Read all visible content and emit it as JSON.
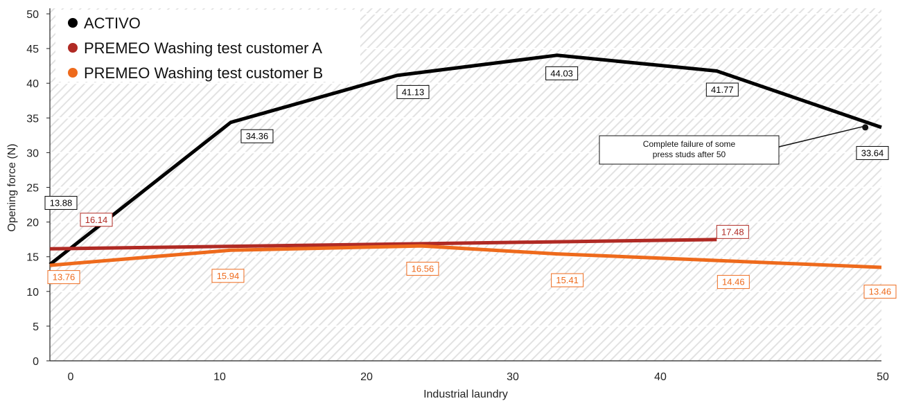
{
  "chart_data": {
    "type": "line",
    "xlabel": "Industrial laundry",
    "ylabel": "Opening force (N)",
    "xlim": [
      -1.5,
      50
    ],
    "ylim": [
      0,
      50
    ],
    "x_ticks": [
      "0",
      "10",
      "20",
      "30",
      "40",
      "50"
    ],
    "y_ticks": [
      "0",
      "5",
      "10",
      "15",
      "20",
      "25",
      "30",
      "35",
      "40",
      "45",
      "50"
    ],
    "legend_position": "top-left",
    "background": "hatched",
    "series": [
      {
        "name": "ACTIVO",
        "color": "#000000",
        "points": [
          {
            "x": -1.5,
            "y": 13.88,
            "label": "13.88"
          },
          {
            "x": 9.7,
            "y": 34.36,
            "label": "34.36"
          },
          {
            "x": 20,
            "y": 41.13,
            "label": "41.13"
          },
          {
            "x": 29.9,
            "y": 44.03,
            "label": "44.03"
          },
          {
            "x": 39.8,
            "y": 41.77,
            "label": "41.77"
          },
          {
            "x": 50,
            "y": 33.64,
            "label": "33.64"
          }
        ]
      },
      {
        "name": "PREMEO Washing test customer A",
        "color": "#b02a24",
        "points": [
          {
            "x": -1.5,
            "y": 16.14,
            "label": "16.14"
          },
          {
            "x": 39.8,
            "y": 17.48,
            "label": "17.48"
          }
        ]
      },
      {
        "name": "PREMEO Washing test customer B",
        "color": "#ee6a1c",
        "points": [
          {
            "x": -1.5,
            "y": 13.76,
            "label": "13.76"
          },
          {
            "x": 9.7,
            "y": 15.94,
            "label": "15.94"
          },
          {
            "x": 21.5,
            "y": 16.56,
            "label": "16.56"
          },
          {
            "x": 29.9,
            "y": 15.41,
            "label": "15.41"
          },
          {
            "x": 39.8,
            "y": 14.46,
            "label": "14.46"
          },
          {
            "x": 50,
            "y": 13.46,
            "label": "13.46"
          }
        ]
      }
    ],
    "annotations": [
      {
        "text_lines": [
          "Complete failure of some",
          "press studs after 50"
        ],
        "x": 49,
        "y": 33.64
      }
    ]
  }
}
